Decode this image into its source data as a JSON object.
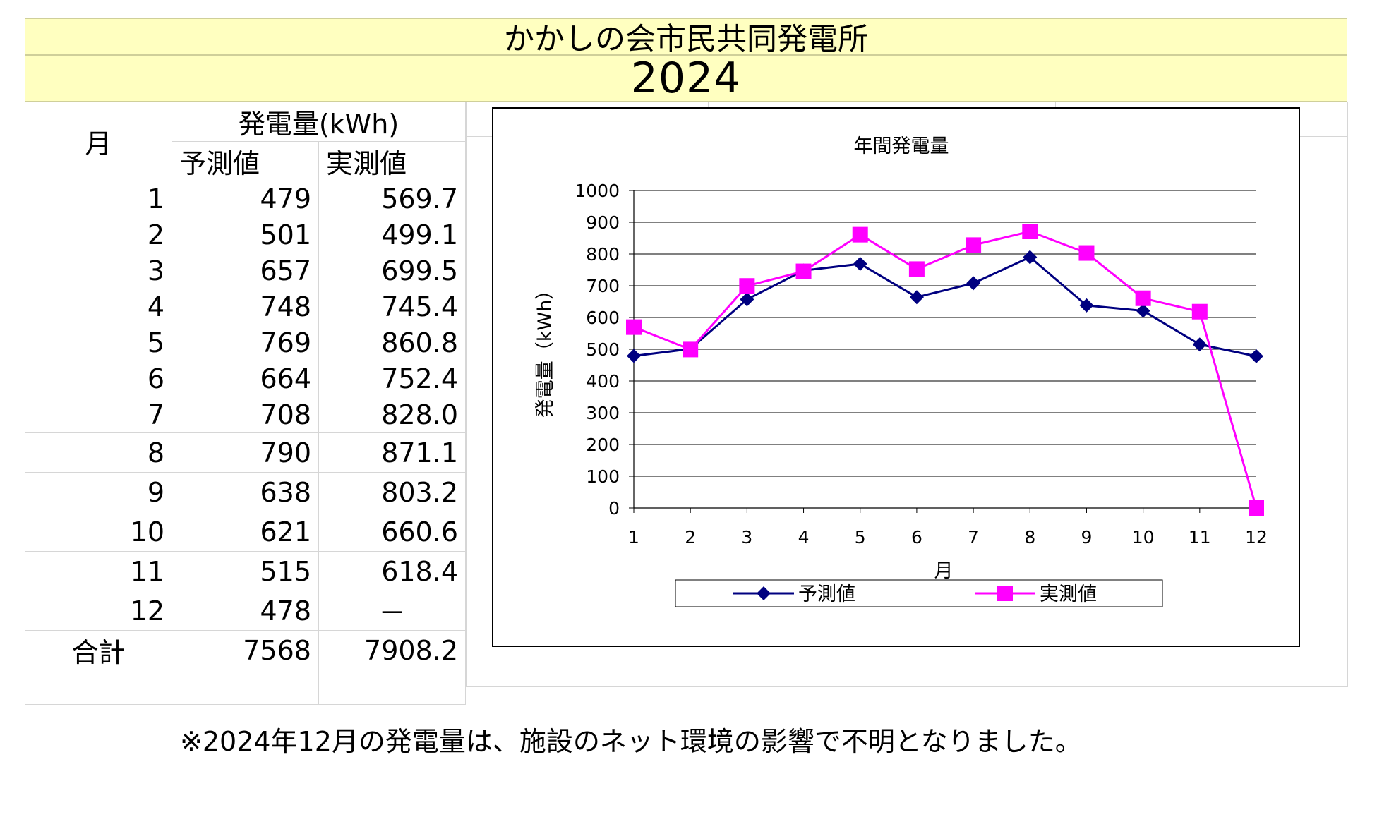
{
  "banner": {
    "title": "かかしの会市民共同発電所",
    "year": "2024"
  },
  "table": {
    "header": {
      "month": "月",
      "group": "発電量(kWh)",
      "predicted": "予測値",
      "actual": "実測値"
    },
    "rows": [
      {
        "month": "1",
        "predicted": "479",
        "actual": "569.7"
      },
      {
        "month": "2",
        "predicted": "501",
        "actual": "499.1"
      },
      {
        "month": "3",
        "predicted": "657",
        "actual": "699.5"
      },
      {
        "month": "4",
        "predicted": "748",
        "actual": "745.4"
      },
      {
        "month": "5",
        "predicted": "769",
        "actual": "860.8"
      },
      {
        "month": "6",
        "predicted": "664",
        "actual": "752.4"
      },
      {
        "month": "7",
        "predicted": "708",
        "actual": "828.0"
      },
      {
        "month": "8",
        "predicted": "790",
        "actual": "871.1"
      },
      {
        "month": "9",
        "predicted": "638",
        "actual": "803.2"
      },
      {
        "month": "10",
        "predicted": "621",
        "actual": "660.6"
      },
      {
        "month": "11",
        "predicted": "515",
        "actual": "618.4"
      },
      {
        "month": "12",
        "predicted": "478",
        "actual": "－"
      }
    ],
    "total": {
      "label": "合計",
      "predicted": "7568",
      "actual": "7908.2"
    }
  },
  "chart_data": {
    "type": "line",
    "title": "年間発電量",
    "xlabel": "月",
    "ylabel": "発電量（kWh）",
    "categories": [
      "1",
      "2",
      "3",
      "4",
      "5",
      "6",
      "7",
      "8",
      "9",
      "10",
      "11",
      "12"
    ],
    "ylim": [
      0,
      1000
    ],
    "yticks": [
      0,
      100,
      200,
      300,
      400,
      500,
      600,
      700,
      800,
      900,
      1000
    ],
    "grid": true,
    "legend_position": "bottom",
    "series": [
      {
        "name": "予測値",
        "values": [
          479,
          501,
          657,
          748,
          769,
          664,
          708,
          790,
          638,
          621,
          515,
          478
        ],
        "color": "#000080",
        "marker": "diamond"
      },
      {
        "name": "実測値",
        "values": [
          569.7,
          499.1,
          699.5,
          745.4,
          860.8,
          752.4,
          828.0,
          871.1,
          803.2,
          660.6,
          618.4,
          0
        ],
        "color": "#ff00ff",
        "marker": "square"
      }
    ]
  },
  "note": "※2024年12月の発電量は、施設のネット環境の影響で不明となりました。"
}
